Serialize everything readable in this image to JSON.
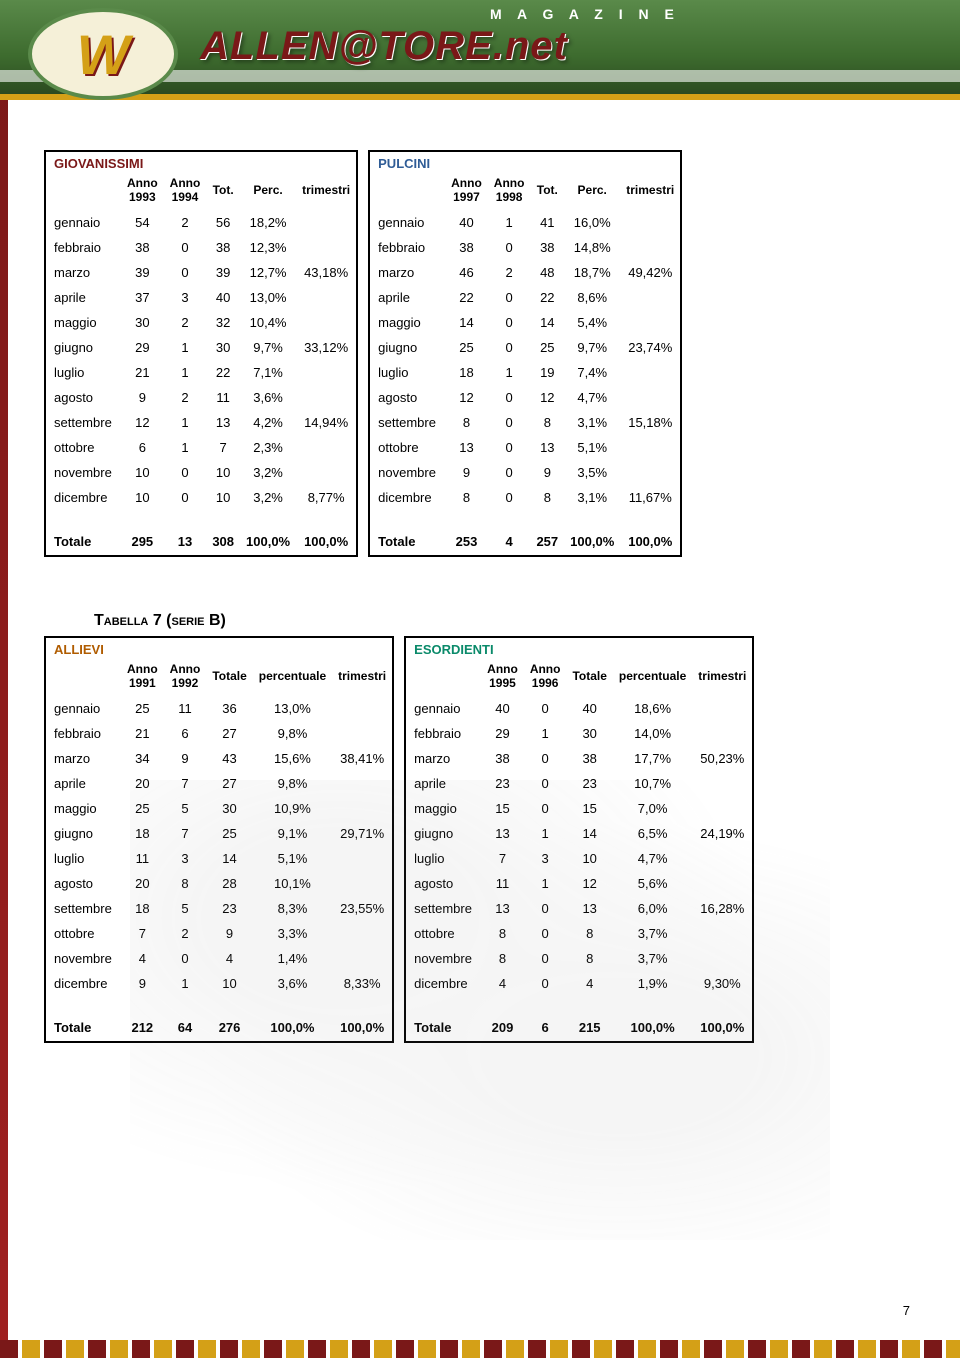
{
  "theme": {
    "colors": {
      "giovanissimi": "#7a1818",
      "pulcini": "#2f5c96",
      "allievi": "#b05c00",
      "esordienti": "#0a8a6a",
      "banner_green_top": "#5a8a4a",
      "banner_green_bottom": "#2b4a20",
      "gold": "#d4a017",
      "white": "#ffffff",
      "text": "#000000"
    },
    "fonts": {
      "body": "Arial",
      "size_body": 13,
      "size_title": 16
    },
    "table_border_width": 2
  },
  "banner": {
    "magazine_label": "M A G A Z I N E",
    "brand_text": "ALLEN@TORE.net",
    "logo_letter": "W"
  },
  "section2_title": "Tabella 7 (serie B)",
  "page_number": "7",
  "months": [
    "gennaio",
    "febbraio",
    "marzo",
    "aprile",
    "maggio",
    "giugno",
    "luglio",
    "agosto",
    "settembre",
    "ottobre",
    "novembre",
    "dicembre"
  ],
  "row_total_label": "Totale",
  "tables": {
    "giovanissimi": {
      "title": "GIOVANISSIMI",
      "headers": [
        "",
        "Anno 1993",
        "Anno 1994",
        "Tot.",
        "Perc.",
        "trimestri"
      ],
      "rows": [
        [
          "gennaio",
          "54",
          "2",
          "56",
          "18,2%",
          ""
        ],
        [
          "febbraio",
          "38",
          "0",
          "38",
          "12,3%",
          ""
        ],
        [
          "marzo",
          "39",
          "0",
          "39",
          "12,7%",
          "43,18%"
        ],
        [
          "aprile",
          "37",
          "3",
          "40",
          "13,0%",
          ""
        ],
        [
          "maggio",
          "30",
          "2",
          "32",
          "10,4%",
          ""
        ],
        [
          "giugno",
          "29",
          "1",
          "30",
          "9,7%",
          "33,12%"
        ],
        [
          "luglio",
          "21",
          "1",
          "22",
          "7,1%",
          ""
        ],
        [
          "agosto",
          "9",
          "2",
          "11",
          "3,6%",
          ""
        ],
        [
          "settembre",
          "12",
          "1",
          "13",
          "4,2%",
          "14,94%"
        ],
        [
          "ottobre",
          "6",
          "1",
          "7",
          "2,3%",
          ""
        ],
        [
          "novembre",
          "10",
          "0",
          "10",
          "3,2%",
          ""
        ],
        [
          "dicembre",
          "10",
          "0",
          "10",
          "3,2%",
          "8,77%"
        ]
      ],
      "total": [
        "Totale",
        "295",
        "13",
        "308",
        "100,0%",
        "100,0%"
      ]
    },
    "pulcini": {
      "title": "PULCINI",
      "headers": [
        "",
        "Anno 1997",
        "Anno 1998",
        "Tot.",
        "Perc.",
        "trimestri"
      ],
      "rows": [
        [
          "gennaio",
          "40",
          "1",
          "41",
          "16,0%",
          ""
        ],
        [
          "febbraio",
          "38",
          "0",
          "38",
          "14,8%",
          ""
        ],
        [
          "marzo",
          "46",
          "2",
          "48",
          "18,7%",
          "49,42%"
        ],
        [
          "aprile",
          "22",
          "0",
          "22",
          "8,6%",
          ""
        ],
        [
          "maggio",
          "14",
          "0",
          "14",
          "5,4%",
          ""
        ],
        [
          "giugno",
          "25",
          "0",
          "25",
          "9,7%",
          "23,74%"
        ],
        [
          "luglio",
          "18",
          "1",
          "19",
          "7,4%",
          ""
        ],
        [
          "agosto",
          "12",
          "0",
          "12",
          "4,7%",
          ""
        ],
        [
          "settembre",
          "8",
          "0",
          "8",
          "3,1%",
          "15,18%"
        ],
        [
          "ottobre",
          "13",
          "0",
          "13",
          "5,1%",
          ""
        ],
        [
          "novembre",
          "9",
          "0",
          "9",
          "3,5%",
          ""
        ],
        [
          "dicembre",
          "8",
          "0",
          "8",
          "3,1%",
          "11,67%"
        ]
      ],
      "total": [
        "Totale",
        "253",
        "4",
        "257",
        "100,0%",
        "100,0%"
      ]
    },
    "allievi": {
      "title": "ALLIEVI",
      "headers": [
        "",
        "Anno 1991",
        "Anno 1992",
        "Totale",
        "percentuale",
        "trimestri"
      ],
      "rows": [
        [
          "gennaio",
          "25",
          "11",
          "36",
          "13,0%",
          ""
        ],
        [
          "febbraio",
          "21",
          "6",
          "27",
          "9,8%",
          ""
        ],
        [
          "marzo",
          "34",
          "9",
          "43",
          "15,6%",
          "38,41%"
        ],
        [
          "aprile",
          "20",
          "7",
          "27",
          "9,8%",
          ""
        ],
        [
          "maggio",
          "25",
          "5",
          "30",
          "10,9%",
          ""
        ],
        [
          "giugno",
          "18",
          "7",
          "25",
          "9,1%",
          "29,71%"
        ],
        [
          "luglio",
          "11",
          "3",
          "14",
          "5,1%",
          ""
        ],
        [
          "agosto",
          "20",
          "8",
          "28",
          "10,1%",
          ""
        ],
        [
          "settembre",
          "18",
          "5",
          "23",
          "8,3%",
          "23,55%"
        ],
        [
          "ottobre",
          "7",
          "2",
          "9",
          "3,3%",
          ""
        ],
        [
          "novembre",
          "4",
          "0",
          "4",
          "1,4%",
          ""
        ],
        [
          "dicembre",
          "9",
          "1",
          "10",
          "3,6%",
          "8,33%"
        ]
      ],
      "total": [
        "Totale",
        "212",
        "64",
        "276",
        "100,0%",
        "100,0%"
      ]
    },
    "esordienti": {
      "title": "ESORDIENTI",
      "headers": [
        "",
        "Anno 1995",
        "Anno 1996",
        "Totale",
        "percentuale",
        "trimestri"
      ],
      "rows": [
        [
          "gennaio",
          "40",
          "0",
          "40",
          "18,6%",
          ""
        ],
        [
          "febbraio",
          "29",
          "1",
          "30",
          "14,0%",
          ""
        ],
        [
          "marzo",
          "38",
          "0",
          "38",
          "17,7%",
          "50,23%"
        ],
        [
          "aprile",
          "23",
          "0",
          "23",
          "10,7%",
          ""
        ],
        [
          "maggio",
          "15",
          "0",
          "15",
          "7,0%",
          ""
        ],
        [
          "giugno",
          "13",
          "1",
          "14",
          "6,5%",
          "24,19%"
        ],
        [
          "luglio",
          "7",
          "3",
          "10",
          "4,7%",
          ""
        ],
        [
          "agosto",
          "11",
          "1",
          "12",
          "5,6%",
          ""
        ],
        [
          "settembre",
          "13",
          "0",
          "13",
          "6,0%",
          "16,28%"
        ],
        [
          "ottobre",
          "8",
          "0",
          "8",
          "3,7%",
          ""
        ],
        [
          "novembre",
          "8",
          "0",
          "8",
          "3,7%",
          ""
        ],
        [
          "dicembre",
          "4",
          "0",
          "4",
          "1,9%",
          "9,30%"
        ]
      ],
      "total": [
        "Totale",
        "209",
        "6",
        "215",
        "100,0%",
        "100,0%"
      ]
    }
  }
}
